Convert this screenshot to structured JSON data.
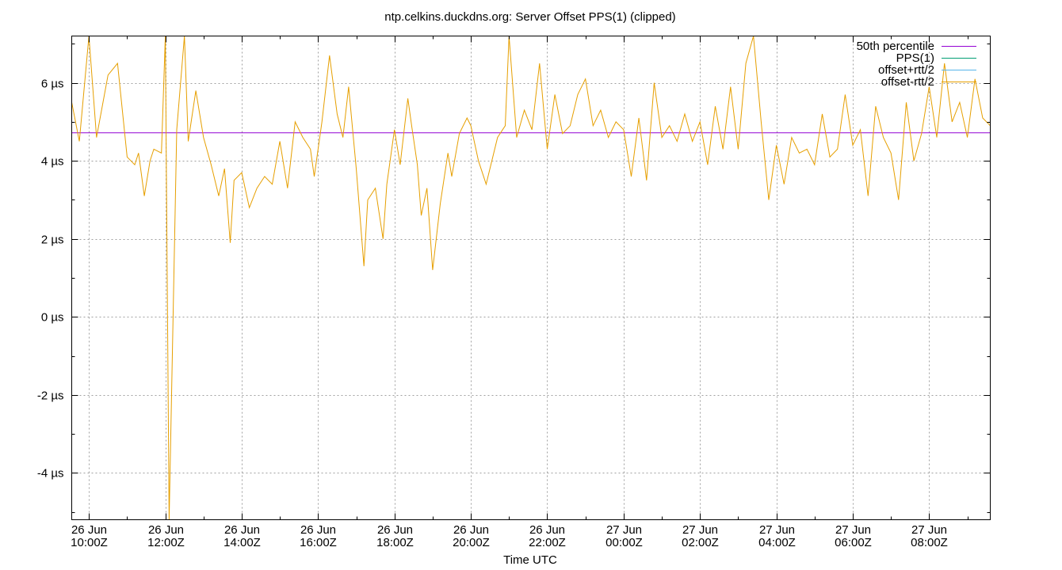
{
  "chart_data": {
    "type": "line",
    "title": "ntp.celkins.duckdns.org: Server Offset PPS(1) (clipped)",
    "xlabel": "Time UTC",
    "ylabel": "",
    "ylim": [
      -5.2,
      7.2
    ],
    "y_unit": "µs",
    "y_ticks": [
      "-4 µs",
      "-2 µs",
      "0 µs",
      "2 µs",
      "4 µs",
      "6 µs"
    ],
    "y_tick_values": [
      -4,
      -2,
      0,
      2,
      4,
      6
    ],
    "xlim": [
      9.55,
      33.6
    ],
    "x_tick_values": [
      10,
      12,
      14,
      16,
      18,
      20,
      22,
      24,
      26,
      28,
      30,
      32
    ],
    "x_ticks": [
      [
        "26 Jun",
        "10:00Z"
      ],
      [
        "26 Jun",
        "12:00Z"
      ],
      [
        "26 Jun",
        "14:00Z"
      ],
      [
        "26 Jun",
        "16:00Z"
      ],
      [
        "26 Jun",
        "18:00Z"
      ],
      [
        "26 Jun",
        "20:00Z"
      ],
      [
        "26 Jun",
        "22:00Z"
      ],
      [
        "27 Jun",
        "00:00Z"
      ],
      [
        "27 Jun",
        "02:00Z"
      ],
      [
        "27 Jun",
        "04:00Z"
      ],
      [
        "27 Jun",
        "06:00Z"
      ],
      [
        "27 Jun",
        "08:00Z"
      ]
    ],
    "grid": true,
    "legend_position": "top-right",
    "percentile_50": 4.72,
    "series": [
      {
        "name": "50th percentile",
        "color": "#9400d3",
        "kind": "hline",
        "value": 4.72
      },
      {
        "name": "PPS(1)",
        "color": "#009e73",
        "kind": "line",
        "values": []
      },
      {
        "name": "offset+rtt/2",
        "color": "#56b4e9",
        "kind": "line",
        "values": []
      },
      {
        "name": "offset-rtt/2",
        "color": "#e69f00",
        "kind": "line",
        "x": [
          9.55,
          9.75,
          10.0,
          10.2,
          10.5,
          10.75,
          11.0,
          11.2,
          11.3,
          11.45,
          11.6,
          11.7,
          11.9,
          12.0,
          12.1,
          12.3,
          12.5,
          12.6,
          12.8,
          13.0,
          13.2,
          13.4,
          13.55,
          13.7,
          13.8,
          14.0,
          14.2,
          14.4,
          14.6,
          14.8,
          15.0,
          15.2,
          15.4,
          15.6,
          15.8,
          15.9,
          16.1,
          16.3,
          16.5,
          16.65,
          16.8,
          17.0,
          17.2,
          17.3,
          17.5,
          17.7,
          17.8,
          18.0,
          18.15,
          18.35,
          18.45,
          18.6,
          18.7,
          18.85,
          19.0,
          19.2,
          19.4,
          19.5,
          19.7,
          19.9,
          20.0,
          20.2,
          20.4,
          20.5,
          20.7,
          20.9,
          21.0,
          21.2,
          21.4,
          21.6,
          21.8,
          22.0,
          22.2,
          22.4,
          22.6,
          22.8,
          23.0,
          23.2,
          23.4,
          23.6,
          23.8,
          24.0,
          24.2,
          24.4,
          24.6,
          24.8,
          25.0,
          25.2,
          25.4,
          25.6,
          25.8,
          26.0,
          26.2,
          26.4,
          26.6,
          26.8,
          27.0,
          27.2,
          27.4,
          27.6,
          27.8,
          28.0,
          28.2,
          28.4,
          28.6,
          28.8,
          29.0,
          29.2,
          29.4,
          29.6,
          29.8,
          30.0,
          30.2,
          30.4,
          30.6,
          30.8,
          31.0,
          31.2,
          31.4,
          31.6,
          31.8,
          32.0,
          32.2,
          32.4,
          32.6,
          32.8,
          33.0,
          33.2,
          33.4,
          33.6
        ],
        "values": [
          5.5,
          4.5,
          7.2,
          4.6,
          6.2,
          6.5,
          4.1,
          3.9,
          4.2,
          3.1,
          4.0,
          4.3,
          4.2,
          7.2,
          -5.2,
          4.8,
          7.2,
          4.5,
          5.8,
          4.6,
          3.9,
          3.1,
          3.8,
          1.9,
          3.5,
          3.7,
          2.8,
          3.3,
          3.6,
          3.4,
          4.5,
          3.3,
          5.0,
          4.6,
          4.3,
          3.6,
          5.0,
          6.7,
          5.2,
          4.6,
          5.9,
          3.8,
          1.3,
          3.0,
          3.3,
          2.0,
          3.4,
          4.8,
          3.9,
          5.6,
          4.9,
          3.9,
          2.6,
          3.3,
          1.2,
          2.9,
          4.2,
          3.6,
          4.7,
          5.1,
          4.9,
          4.0,
          3.4,
          3.8,
          4.6,
          4.9,
          7.2,
          4.6,
          5.3,
          4.8,
          6.5,
          4.3,
          5.7,
          4.7,
          4.9,
          5.7,
          6.1,
          4.9,
          5.3,
          4.6,
          5.0,
          4.8,
          3.6,
          5.1,
          3.5,
          6.0,
          4.6,
          4.9,
          4.5,
          5.2,
          4.5,
          5.0,
          3.9,
          5.4,
          4.3,
          5.9,
          4.3,
          6.5,
          7.2,
          5.0,
          3.0,
          4.4,
          3.4,
          4.6,
          4.2,
          4.3,
          3.9,
          5.2,
          4.1,
          4.3,
          5.7,
          4.4,
          4.8,
          3.1,
          5.4,
          4.6,
          4.2,
          3.0,
          5.5,
          4.0,
          4.7,
          5.9,
          4.6,
          6.5,
          5.0,
          5.5,
          4.6,
          6.1,
          5.1,
          4.9
        ]
      }
    ]
  }
}
